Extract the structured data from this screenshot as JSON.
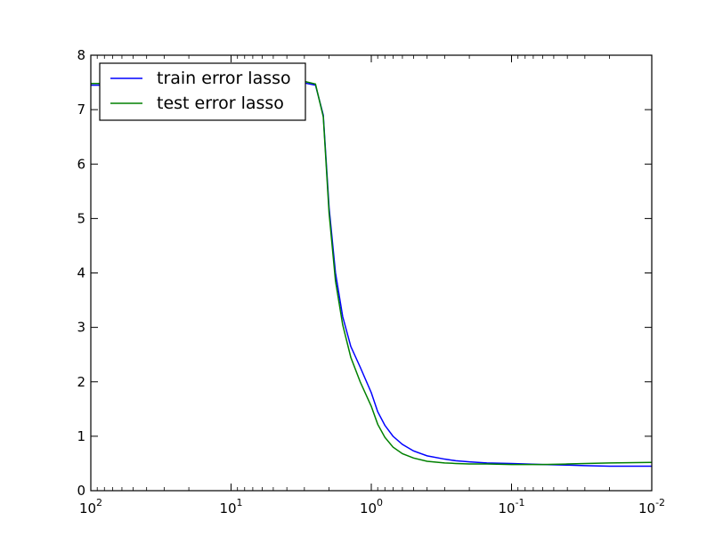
{
  "chart_data": {
    "type": "line",
    "x_scale": "log",
    "x_reversed": true,
    "xlim": [
      100,
      0.01
    ],
    "ylim": [
      0,
      8
    ],
    "grid": false,
    "legend_position": "top-left",
    "x_ticks": [
      {
        "value": 100,
        "base": "10",
        "exp": "2"
      },
      {
        "value": 10,
        "base": "10",
        "exp": "1"
      },
      {
        "value": 1,
        "base": "10",
        "exp": "0"
      },
      {
        "value": 0.1,
        "base": "10",
        "exp": "-1"
      },
      {
        "value": 0.01,
        "base": "10",
        "exp": "-2"
      }
    ],
    "y_ticks": [
      0,
      1,
      2,
      3,
      4,
      5,
      6,
      7,
      8
    ],
    "y_tick_labels": [
      "0",
      "1",
      "2",
      "3",
      "4",
      "5",
      "6",
      "7",
      "8"
    ],
    "x": [
      100,
      50,
      30,
      10,
      5,
      3,
      2.5,
      2.2,
      2.0,
      1.8,
      1.6,
      1.4,
      1.2,
      1.0,
      0.9,
      0.8,
      0.7,
      0.6,
      0.5,
      0.4,
      0.3,
      0.25,
      0.2,
      0.15,
      0.1,
      0.08,
      0.06,
      0.04,
      0.03,
      0.02,
      0.01
    ],
    "series": [
      {
        "name": "train error lasso",
        "color": "#0000ff",
        "values": [
          7.45,
          7.45,
          7.46,
          7.47,
          7.48,
          7.49,
          7.45,
          6.9,
          5.2,
          4.0,
          3.2,
          2.65,
          2.27,
          1.8,
          1.45,
          1.2,
          1.0,
          0.85,
          0.73,
          0.64,
          0.58,
          0.55,
          0.53,
          0.51,
          0.5,
          0.49,
          0.48,
          0.47,
          0.46,
          0.45,
          0.45
        ]
      },
      {
        "name": "test error lasso",
        "color": "#008000",
        "values": [
          7.48,
          7.48,
          7.49,
          7.5,
          7.51,
          7.52,
          7.47,
          6.87,
          5.1,
          3.85,
          3.05,
          2.45,
          2.0,
          1.55,
          1.22,
          0.98,
          0.8,
          0.68,
          0.6,
          0.54,
          0.51,
          0.5,
          0.49,
          0.49,
          0.48,
          0.48,
          0.48,
          0.49,
          0.5,
          0.51,
          0.52
        ]
      }
    ]
  }
}
